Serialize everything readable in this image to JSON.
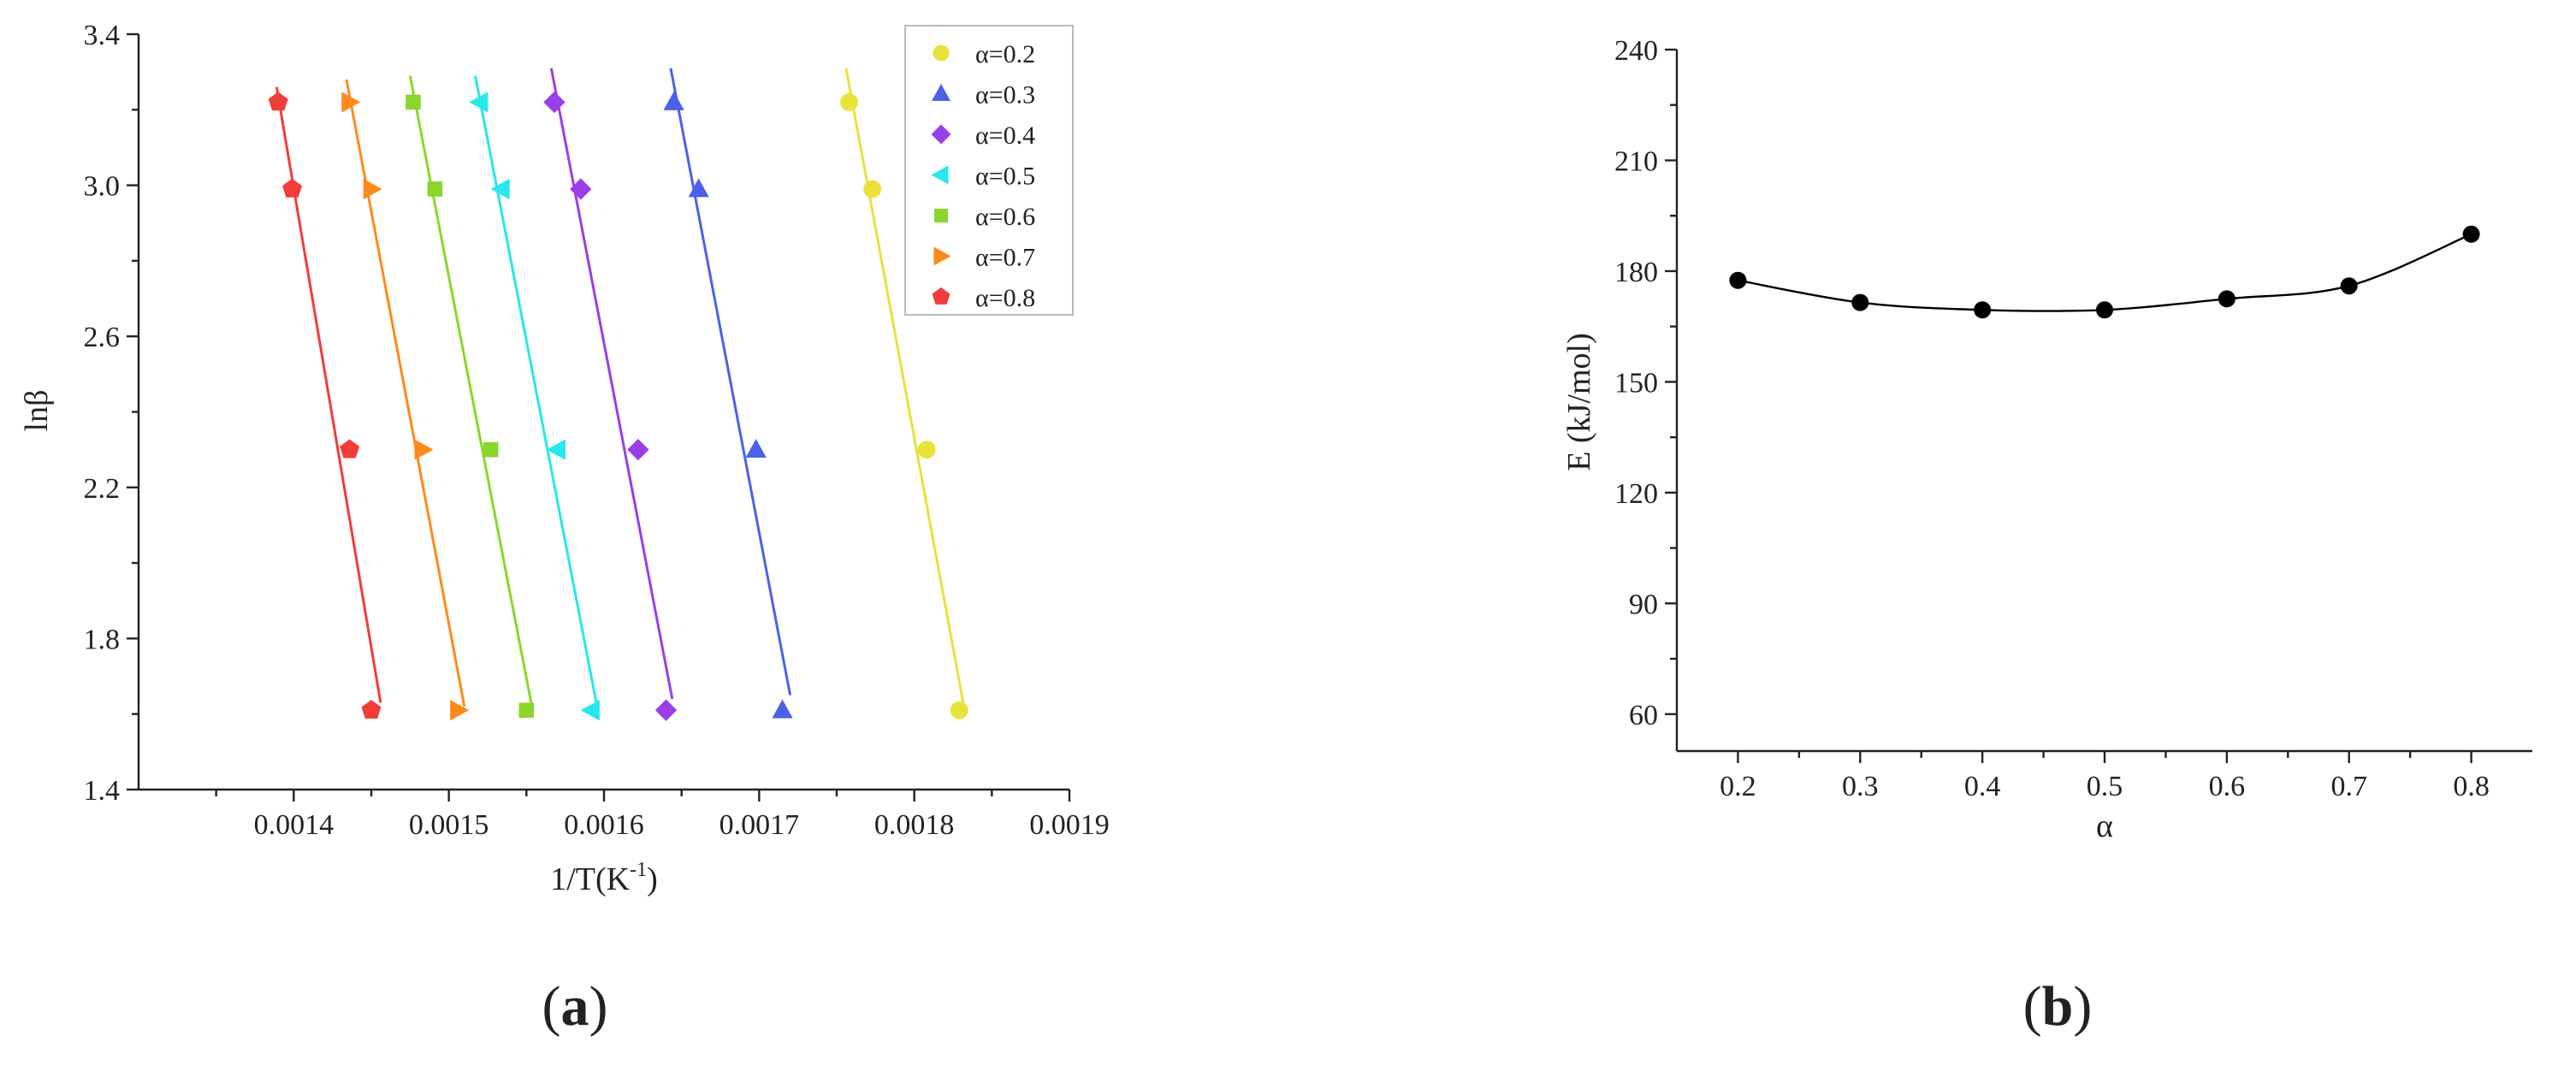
{
  "chart_data": [
    {
      "type": "scatter",
      "panel": "(a)",
      "panel_label": "a",
      "xlabel": "1/T(K",
      "xlabel_sup": "-1",
      "xlabel_end": ")",
      "ylabel": "lnβ",
      "xlim": [
        0.0013,
        0.0019
      ],
      "ylim": [
        1.4,
        3.4
      ],
      "xticks": [
        {
          "v": 0.0014,
          "label": "0.0014"
        },
        {
          "v": 0.0015,
          "label": "0.0015"
        },
        {
          "v": 0.0016,
          "label": "0.0016"
        },
        {
          "v": 0.0017,
          "label": "0.0017"
        },
        {
          "v": 0.0018,
          "label": "0.0018"
        },
        {
          "v": 0.0019,
          "label": "0.0019"
        }
      ],
      "yticks": [
        {
          "v": 1.4,
          "label": "1.4"
        },
        {
          "v": 1.8,
          "label": "1.8"
        },
        {
          "v": 2.2,
          "label": "2.2"
        },
        {
          "v": 2.6,
          "label": "2.6"
        },
        {
          "v": 3.0,
          "label": "3.0"
        },
        {
          "v": 3.4,
          "label": "3.4"
        }
      ],
      "legend_position": "top-right",
      "series": [
        {
          "name": "α=0.2",
          "color": "#e8e23a",
          "marker": "circle",
          "points": [
            [
              0.001758,
              3.22
            ],
            [
              0.001773,
              2.99
            ],
            [
              0.001808,
              2.3
            ],
            [
              0.001829,
              1.61
            ]
          ],
          "fit": [
            [
              0.001756,
              3.31
            ],
            [
              0.001832,
              1.62
            ]
          ]
        },
        {
          "name": "α=0.3",
          "color": "#4a62e8",
          "marker": "triangle-up",
          "points": [
            [
              0.001645,
              3.22
            ],
            [
              0.001661,
              2.99
            ],
            [
              0.001698,
              2.3
            ],
            [
              0.001715,
              1.61
            ]
          ],
          "fit": [
            [
              0.001643,
              3.31
            ],
            [
              0.00172,
              1.65
            ]
          ]
        },
        {
          "name": "α=0.4",
          "color": "#9a3ee8",
          "marker": "diamond",
          "points": [
            [
              0.001568,
              3.22
            ],
            [
              0.001585,
              2.99
            ],
            [
              0.001622,
              2.3
            ],
            [
              0.00164,
              1.61
            ]
          ],
          "fit": [
            [
              0.001566,
              3.31
            ],
            [
              0.001644,
              1.64
            ]
          ]
        },
        {
          "name": "α=0.5",
          "color": "#27e8ea",
          "marker": "triangle-left",
          "points": [
            [
              0.00152,
              3.22
            ],
            [
              0.001534,
              2.99
            ],
            [
              0.00157,
              2.3
            ],
            [
              0.001592,
              1.61
            ]
          ],
          "fit": [
            [
              0.001517,
              3.29
            ],
            [
              0.001596,
              1.61
            ]
          ]
        },
        {
          "name": "α=0.6",
          "color": "#8ad62c",
          "marker": "square",
          "points": [
            [
              0.001477,
              3.22
            ],
            [
              0.001491,
              2.99
            ],
            [
              0.001527,
              2.3
            ],
            [
              0.00155,
              1.61
            ]
          ],
          "fit": [
            [
              0.001475,
              3.29
            ],
            [
              0.001554,
              1.61
            ]
          ]
        },
        {
          "name": "α=0.7",
          "color": "#ff8a1c",
          "marker": "triangle-right",
          "points": [
            [
              0.001436,
              3.22
            ],
            [
              0.00145,
              2.99
            ],
            [
              0.001483,
              2.3
            ],
            [
              0.001506,
              1.61
            ]
          ],
          "fit": [
            [
              0.001434,
              3.28
            ],
            [
              0.00151,
              1.62
            ]
          ]
        },
        {
          "name": "α=0.8",
          "color": "#f23b3b",
          "marker": "pentagon",
          "points": [
            [
              0.00139,
              3.22
            ],
            [
              0.001399,
              2.99
            ],
            [
              0.001436,
              2.3
            ],
            [
              0.00145,
              1.61
            ]
          ],
          "fit": [
            [
              0.001389,
              3.26
            ],
            [
              0.001456,
              1.63
            ]
          ]
        }
      ]
    },
    {
      "type": "line",
      "panel": "(b)",
      "panel_label": "b",
      "xlabel": "α",
      "ylabel": "E (kJ/mol)",
      "xlim": [
        0.15,
        0.85
      ],
      "ylim": [
        50,
        240
      ],
      "xticks": [
        {
          "v": 0.2,
          "label": "0.2"
        },
        {
          "v": 0.3,
          "label": "0.3"
        },
        {
          "v": 0.4,
          "label": "0.4"
        },
        {
          "v": 0.5,
          "label": "0.5"
        },
        {
          "v": 0.6,
          "label": "0.6"
        },
        {
          "v": 0.7,
          "label": "0.7"
        },
        {
          "v": 0.8,
          "label": "0.8"
        }
      ],
      "yticks": [
        {
          "v": 60,
          "label": "60"
        },
        {
          "v": 90,
          "label": "90"
        },
        {
          "v": 120,
          "label": "120"
        },
        {
          "v": 150,
          "label": "150"
        },
        {
          "v": 180,
          "label": "180"
        },
        {
          "v": 210,
          "label": "210"
        },
        {
          "v": 240,
          "label": "240"
        }
      ],
      "series": [
        {
          "color": "#000000",
          "x": [
            0.2,
            0.3,
            0.4,
            0.5,
            0.6,
            0.7,
            0.8
          ],
          "values": [
            177.5,
            171.5,
            169.5,
            169.5,
            172.5,
            176.0,
            190.0
          ]
        }
      ]
    }
  ]
}
